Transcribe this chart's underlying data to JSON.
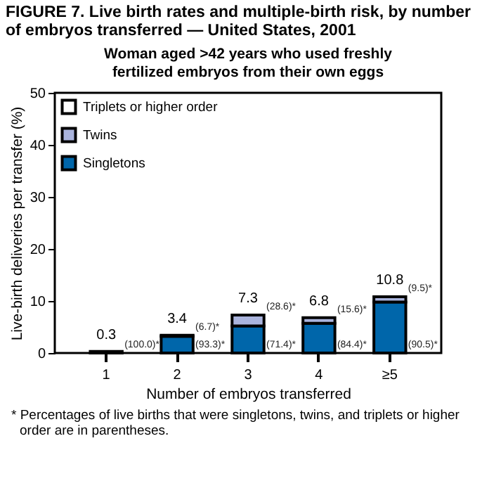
{
  "chart_data": {
    "type": "bar",
    "stacked": true,
    "title": "FIGURE 7. Live birth rates and multiple-birth risk, by number of embryos transferred — United States, 2001",
    "subtitle": "Woman aged >42 years who used freshly fertilized embryos from their own eggs",
    "xlabel": "Number of embryos transferred",
    "ylabel": "Live-birth deliveries per transfer (%)",
    "categories": [
      "1",
      "2",
      "3",
      "4",
      "≥5"
    ],
    "series": [
      {
        "name": "Singletons",
        "color": "#0066aa",
        "values": [
          0.3,
          3.2,
          5.2,
          5.7,
          9.8
        ]
      },
      {
        "name": "Twins",
        "color": "#aab4dd",
        "values": [
          null,
          0.2,
          2.1,
          1.1,
          1.0
        ]
      },
      {
        "name": "Triplets or higher order",
        "color": "#ffffff",
        "values": [
          null,
          null,
          null,
          null,
          null
        ]
      }
    ],
    "totals": [
      "0.3",
      "3.4",
      "7.3",
      "6.8",
      "10.8"
    ],
    "ylim": [
      0,
      50
    ],
    "yticks": [
      0,
      10,
      20,
      30,
      40,
      50
    ],
    "grid": false,
    "legend": "top left",
    "annotations": [
      {
        "text": "(100.0)*",
        "x": "1",
        "y": 0
      },
      {
        "text": "(6.7)*",
        "x": "2",
        "y": 3.4
      },
      {
        "text": "(93.3)*",
        "x": "2",
        "y": 0
      },
      {
        "text": "(28.6)*",
        "x": "3",
        "y": 7.3
      },
      {
        "text": "(71.4)*",
        "x": "3",
        "y": 0
      },
      {
        "text": "(15.6)*",
        "x": "4",
        "y": 6.8
      },
      {
        "text": "(84.4)*",
        "x": "4",
        "y": 0
      },
      {
        "text": "(9.5)*",
        "x": "≥5",
        "y": 10.8
      },
      {
        "text": "(90.5)*",
        "x": "≥5",
        "y": 0
      },
      "* Percentages of live births that were singletons, twins, and triplets or higher order are in parentheses."
    ]
  }
}
